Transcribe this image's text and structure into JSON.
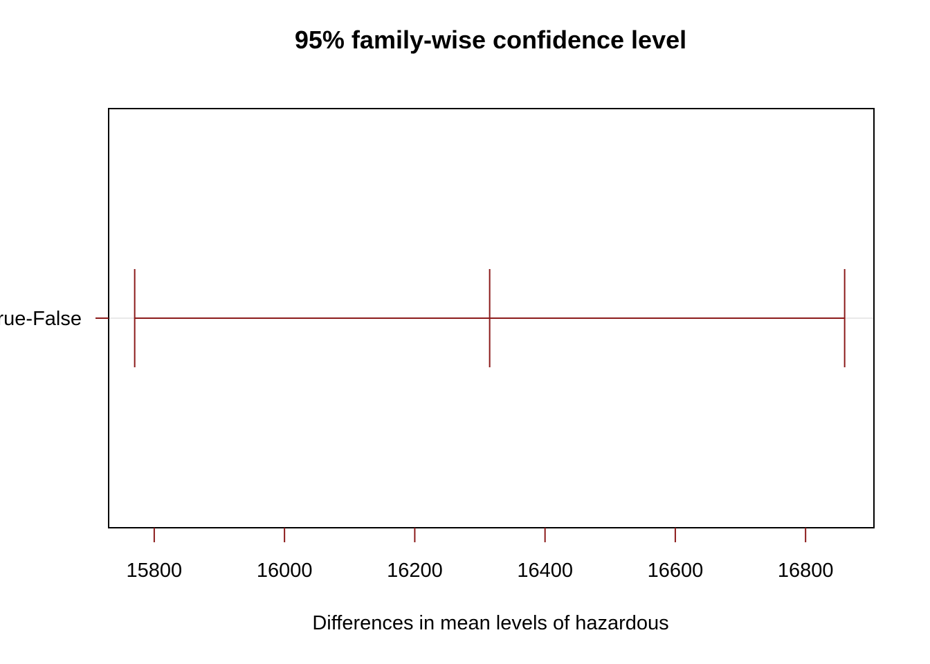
{
  "chart_data": {
    "type": "errorbar",
    "title": "95% family-wise confidence level",
    "xlabel": "Differences in mean levels of hazardous",
    "ylabel": "",
    "xlim": [
      15730,
      16905
    ],
    "x_ticks": [
      15800,
      16000,
      16200,
      16400,
      16600,
      16800
    ],
    "grid": "horizontal line at each comparison",
    "comparisons": [
      {
        "label": "True-False",
        "lower": 15770,
        "estimate": 16315,
        "upper": 16860
      }
    ],
    "colors": {
      "interval": "#8b1a1a",
      "frame": "#000000",
      "gridline": "#d3d3d3",
      "text": "#000000"
    }
  }
}
